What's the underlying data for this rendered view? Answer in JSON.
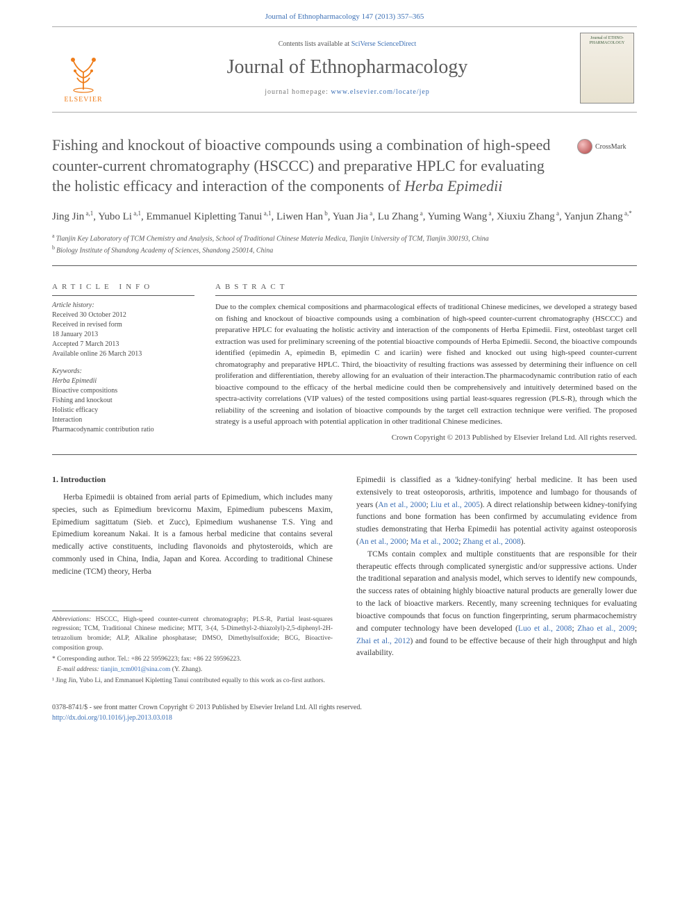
{
  "header": {
    "top_link": "Journal of Ethnopharmacology 147 (2013) 357–365",
    "contents_prefix": "Contents lists available at ",
    "contents_link": "SciVerse ScienceDirect",
    "journal_name": "Journal of Ethnopharmacology",
    "homepage_prefix": "journal homepage: ",
    "homepage_link": "www.elsevier.com/locate/jep",
    "elsevier_label": "ELSEVIER",
    "cover_title": "Journal of ETHNO-PHARMACOLOGY",
    "crossmark_label": "CrossMark"
  },
  "title": {
    "line": "Fishing and knockout of bioactive compounds using a combination of high-speed counter-current chromatography (HSCCC) and preparative HPLC for evaluating the holistic efficacy and interaction of the components of ",
    "italic_tail": "Herba Epimedii"
  },
  "authors": {
    "list": [
      {
        "name": "Jing Jin",
        "sup": "a,1"
      },
      {
        "name": "Yubo Li",
        "sup": "a,1"
      },
      {
        "name": "Emmanuel Kipletting Tanui",
        "sup": "a,1"
      },
      {
        "name": "Liwen Han",
        "sup": "b"
      },
      {
        "name": "Yuan Jia",
        "sup": "a"
      },
      {
        "name": "Lu Zhang",
        "sup": "a"
      },
      {
        "name": "Yuming Wang",
        "sup": "a"
      },
      {
        "name": "Xiuxiu Zhang",
        "sup": "a"
      },
      {
        "name": "Yanjun Zhang",
        "sup": "a,*"
      }
    ]
  },
  "affiliations": [
    {
      "sup": "a",
      "text": "Tianjin Key Laboratory of TCM Chemistry and Analysis, School of Traditional Chinese Materia Medica, Tianjin University of TCM, Tianjin 300193, China"
    },
    {
      "sup": "b",
      "text": "Biology Institute of Shandong Academy of Sciences, Shandong 250014, China"
    }
  ],
  "info": {
    "heading": "article info",
    "history_label": "Article history:",
    "history_lines": [
      "Received 30 October 2012",
      "Received in revised form",
      "18 January 2013",
      "Accepted 7 March 2013",
      "Available online 26 March 2013"
    ],
    "keywords_label": "Keywords:",
    "keywords": [
      "Herba Epimedii",
      "Bioactive compositions",
      "Fishing and knockout",
      "Holistic efficacy",
      "Interaction",
      "Pharmacodynamic contribution ratio"
    ]
  },
  "abstract": {
    "heading": "abstract",
    "body": "Due to the complex chemical compositions and pharmacological effects of traditional Chinese medicines, we developed a strategy based on fishing and knockout of bioactive compounds using a combination of high-speed counter-current chromatography (HSCCC) and preparative HPLC for evaluating the holistic activity and interaction of the components of Herba Epimedii. First, osteoblast target cell extraction was used for preliminary screening of the potential bioactive compounds of Herba Epimedii. Second, the bioactive compounds identified (epimedin A, epimedin B, epimedin C and icariin) were fished and knocked out using high-speed counter-current chromatography and preparative HPLC. Third, the bioactivity of resulting fractions was assessed by determining their influence on cell proliferation and differentiation, thereby allowing for an evaluation of their interaction.The pharmacodynamic contribution ratio of each bioactive compound to the efficacy of the herbal medicine could then be comprehensively and intuitively determined based on the spectra-activity correlations (VIP values) of the tested compositions using partial least-squares regression (PLS-R), through which the reliability of the screening and isolation of bioactive compounds by the target cell extraction technique were verified. The proposed strategy is a useful approach with potential application in other traditional Chinese medicines.",
    "copyright": "Crown Copyright © 2013 Published by Elsevier Ireland Ltd. All rights reserved."
  },
  "intro": {
    "heading": "1.  Introduction",
    "p1_a": "Herba Epimedii is obtained from aerial parts of Epimedium, which includes many species, such as Epimedium brevicornu Maxim, Epimedium pubescens Maxim, Epimedium sagittatum (Sieb. et Zucc), Epimedium wushanense T.S. Ying and Epimedium koreanum Nakai. It is a famous herbal medicine that contains several medically active constituents, including flavonoids and phytosteroids, which are commonly used in China, India, Japan and Korea. According to traditional Chinese medicine (TCM) theory, Herba",
    "p1_b_pre": "Epimedii is classified as a 'kidney-tonifying' herbal medicine. It has been used extensively to treat osteoporosis, arthritis, impotence and lumbago for thousands of years (",
    "p1_b_cite1": "An et al., 2000",
    "p1_b_mid1": "; ",
    "p1_b_cite2": "Liu et al., 2005",
    "p1_b_mid2": "). A direct relationship between kidney-tonifying functions and bone formation has been confirmed by accumulating evidence from studies demonstrating that Herba Epimedii has potential activity against osteoporosis (",
    "p1_b_cite3": "An et al., 2000",
    "p1_b_mid3": "; ",
    "p1_b_cite4": "Ma et al., 2002",
    "p1_b_mid4": "; ",
    "p1_b_cite5": "Zhang et al., 2008",
    "p1_b_mid5": ").",
    "p2_pre": "TCMs contain complex and multiple constituents that are responsible for their therapeutic effects through complicated synergistic and/or suppressive actions. Under the traditional separation and analysis model, which serves to identify new compounds, the success rates of obtaining highly bioactive natural products are generally lower due to the lack of bioactive markers. Recently, many screening techniques for evaluating bioactive compounds that focus on function fingerprinting, serum pharmacochemistry and computer technology have been developed (",
    "p2_cite1": "Luo et al., 2008",
    "p2_mid1": "; ",
    "p2_cite2": "Zhao et al., 2009",
    "p2_mid2": "; ",
    "p2_cite3": "Zhai et al., 2012",
    "p2_mid3": ") and found to be effective because of their high throughput and high availability."
  },
  "footnotes": {
    "abbrev_label": "Abbreviations:",
    "abbrev_text": " HSCCC, High-speed counter-current chromatography; PLS-R, Partial least-squares regression; TCM, Traditional Chinese medicine; MTT, 3-(4, 5-Dimethyl-2-thiazolyl)-2,5-diphenyl-2H-tetrazolium bromide; ALP, Alkaline phosphatase; DMSO, Dimethylsulfoxide; BCG, Bioactive-composition group.",
    "corresponding": "* Corresponding author. Tel.: +86 22 59596223; fax: +86 22 59596223.",
    "email_label": "E-mail address:",
    "email": " tianjin_tcm001@sina.com",
    "email_suffix": " (Y. Zhang).",
    "note1": "¹ Jing Jin, Yubo Li, and Emmanuel Kipletting Tanui contributed equally to this work as co-first authors."
  },
  "footer": {
    "line1": "0378-8741/$ - see front matter Crown Copyright © 2013 Published by Elsevier Ireland Ltd. All rights reserved.",
    "doi_label": "http://dx.doi.org/",
    "doi": "10.1016/j.jep.2013.03.018"
  },
  "style": {
    "link_color": "#3b6fb5",
    "text_color": "#3a3a3a",
    "rule_color": "#555555",
    "elsevier_orange": "#ef7d1a"
  }
}
